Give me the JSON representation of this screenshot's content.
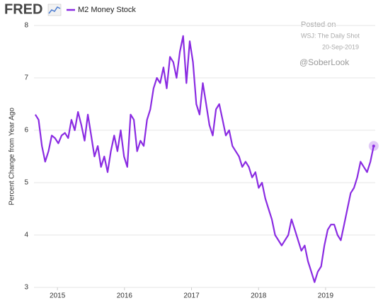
{
  "chart_data": {
    "type": "line",
    "logo": "FRED",
    "ylabel": "Percent Change from Year Ago",
    "annotations": [
      "Posted on",
      "WSJ: The Daily Shot",
      "20-Sep-2019",
      "@SoberLook"
    ],
    "x": [
      2014.67,
      2014.719,
      2014.768,
      2014.817,
      2014.866,
      2014.915,
      2014.964,
      2015.013,
      2015.062,
      2015.111,
      2015.16,
      2015.209,
      2015.258,
      2015.307,
      2015.356,
      2015.405,
      2015.454,
      2015.503,
      2015.552,
      2015.601,
      2015.65,
      2015.699,
      2015.748,
      2015.797,
      2015.846,
      2015.895,
      2015.944,
      2015.993,
      2016.042,
      2016.091,
      2016.14,
      2016.189,
      2016.238,
      2016.287,
      2016.336,
      2016.385,
      2016.434,
      2016.483,
      2016.532,
      2016.581,
      2016.63,
      2016.679,
      2016.728,
      2016.777,
      2016.826,
      2016.875,
      2016.924,
      2016.973,
      2017.022,
      2017.071,
      2017.12,
      2017.169,
      2017.218,
      2017.267,
      2017.316,
      2017.365,
      2017.414,
      2017.463,
      2017.512,
      2017.561,
      2017.61,
      2017.659,
      2017.708,
      2017.757,
      2017.806,
      2017.855,
      2017.904,
      2017.953,
      2018.002,
      2018.051,
      2018.1,
      2018.149,
      2018.198,
      2018.247,
      2018.296,
      2018.345,
      2018.394,
      2018.443,
      2018.492,
      2018.541,
      2018.59,
      2018.639,
      2018.688,
      2018.737,
      2018.786,
      2018.835,
      2018.884,
      2018.933,
      2018.982,
      2019.031,
      2019.08,
      2019.129,
      2019.178,
      2019.227,
      2019.276,
      2019.325,
      2019.374,
      2019.423,
      2019.472,
      2019.521,
      2019.57,
      2019.619,
      2019.668,
      2019.717
    ],
    "series": [
      {
        "name": "M2 Money Stock",
        "color": "#8a2be2",
        "values": [
          6.3,
          6.2,
          5.7,
          5.4,
          5.6,
          5.9,
          5.85,
          5.75,
          5.9,
          5.95,
          5.85,
          6.2,
          6.0,
          6.35,
          6.1,
          5.8,
          6.3,
          5.9,
          5.5,
          5.7,
          5.3,
          5.5,
          5.2,
          5.6,
          5.9,
          5.6,
          6.0,
          5.5,
          5.3,
          6.3,
          6.2,
          5.6,
          5.8,
          5.7,
          6.2,
          6.4,
          6.8,
          7.0,
          6.9,
          7.2,
          6.8,
          7.4,
          7.3,
          7.0,
          7.5,
          7.8,
          6.9,
          7.7,
          7.3,
          6.5,
          6.3,
          6.9,
          6.5,
          6.1,
          5.9,
          6.4,
          6.5,
          6.2,
          5.9,
          6.0,
          5.7,
          5.6,
          5.5,
          5.3,
          5.4,
          5.3,
          5.1,
          5.2,
          4.9,
          5.0,
          4.7,
          4.5,
          4.3,
          4.0,
          3.9,
          3.8,
          3.9,
          4.0,
          4.3,
          4.1,
          3.9,
          3.7,
          3.8,
          3.5,
          3.3,
          3.1,
          3.3,
          3.4,
          3.8,
          4.1,
          4.2,
          4.2,
          4.0,
          3.9,
          4.2,
          4.5,
          4.8,
          4.9,
          5.1,
          5.4,
          5.3,
          5.2,
          5.4,
          5.7
        ]
      }
    ],
    "xlim": [
      2014.65,
      2019.74
    ],
    "xticks": [
      2015,
      2016,
      2017,
      2018,
      2019
    ],
    "ylim": [
      3,
      8
    ],
    "yticks": [
      3,
      4,
      5,
      6,
      7,
      8
    ],
    "grid": true
  }
}
